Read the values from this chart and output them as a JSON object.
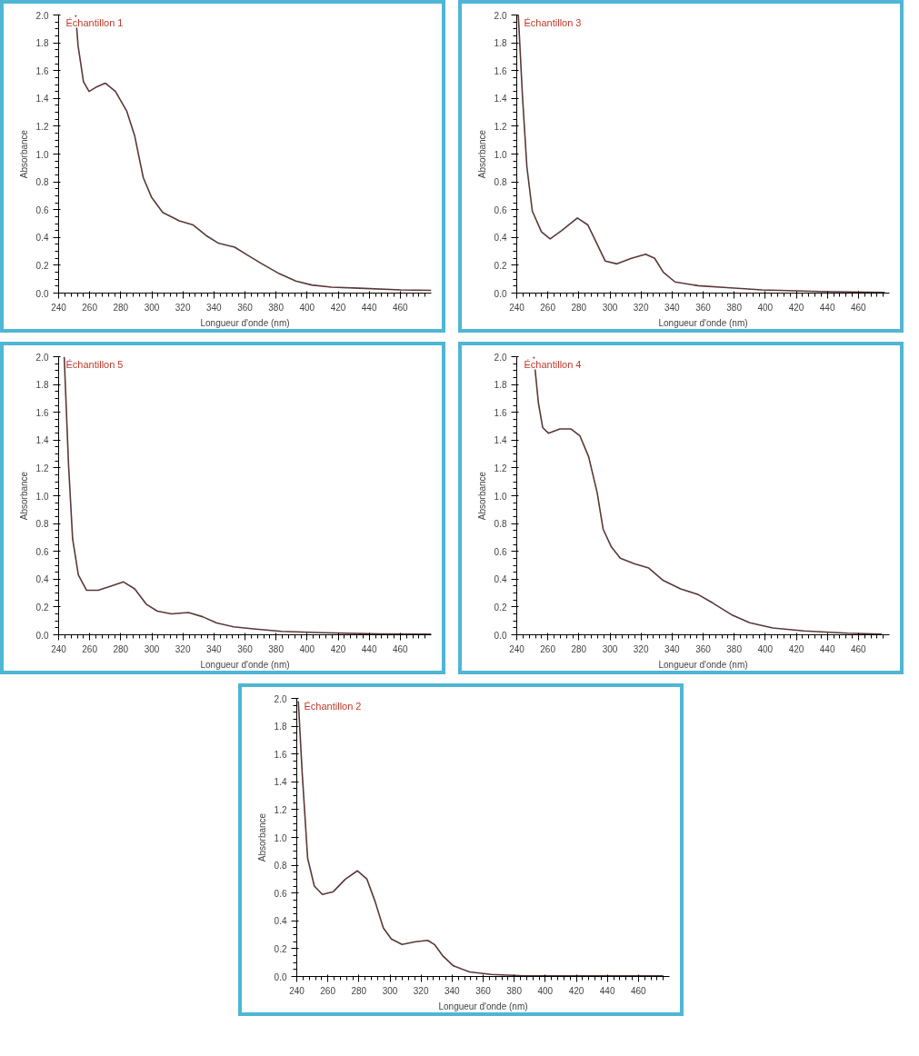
{
  "chart_data": [
    {
      "type": "line",
      "title": "Échantillon 1",
      "xlabel": "Longueur d'onde (nm)",
      "ylabel": "Absorbance",
      "xlim": [
        240,
        480
      ],
      "ylim": [
        0,
        2
      ],
      "xticks": [
        240,
        260,
        280,
        300,
        320,
        340,
        360,
        380,
        400,
        420,
        440,
        460
      ],
      "yticks": [
        {
          "value": 0,
          "label": "0.0"
        },
        0.2,
        0.4,
        0.6,
        0.8,
        {
          "value": 1,
          "label": "1.0"
        },
        1.2,
        1.4,
        1.6,
        1.8,
        {
          "value": 2,
          "label": "2.0"
        }
      ],
      "grid": false,
      "series": [
        {
          "color": "#5a3838",
          "x": [
            251,
            252.5,
            256,
            259.6,
            264,
            270,
            276.6,
            283.8,
            289,
            294.5,
            299.8,
            307,
            317.7,
            326.6,
            335.5,
            342.7,
            353.4,
            362,
            371,
            382,
            392.7,
            403,
            415.7,
            433.6,
            460.5,
            480
          ],
          "values": [
            2.0,
            1.78,
            1.52,
            1.45,
            1.48,
            1.51,
            1.45,
            1.31,
            1.13,
            0.83,
            0.69,
            0.58,
            0.52,
            0.49,
            0.41,
            0.36,
            0.33,
            0.27,
            0.21,
            0.14,
            0.086,
            0.058,
            0.042,
            0.035,
            0.023,
            0.02
          ]
        }
      ]
    },
    {
      "type": "line",
      "title": "Échantillon 3",
      "xlabel": "Longueur d'onde (nm)",
      "ylabel": "Absorbance",
      "xlim": [
        240,
        480
      ],
      "ylim": [
        0,
        2
      ],
      "xticks": [
        240,
        260,
        280,
        300,
        320,
        340,
        360,
        380,
        400,
        420,
        440,
        460
      ],
      "yticks": [
        {
          "value": 0,
          "label": "0.0"
        },
        0.2,
        0.4,
        0.6,
        0.8,
        {
          "value": 1,
          "label": "1.0"
        },
        1.2,
        1.4,
        1.6,
        1.8,
        {
          "value": 2,
          "label": "2.0"
        }
      ],
      "grid": false,
      "series": [
        {
          "color": "#5a3838",
          "x": [
            241,
            243.7,
            246.5,
            250,
            255.9,
            261.5,
            269,
            279,
            285.8,
            291.4,
            297,
            304.5,
            313.8,
            323,
            328.8,
            334.4,
            341.9,
            356.8,
            375.5,
            398,
            435,
            477
          ],
          "values": [
            2.0,
            1.41,
            0.91,
            0.59,
            0.44,
            0.39,
            0.45,
            0.54,
            0.49,
            0.36,
            0.23,
            0.21,
            0.25,
            0.28,
            0.25,
            0.15,
            0.08,
            0.053,
            0.039,
            0.023,
            0.011,
            0.005
          ]
        }
      ]
    },
    {
      "type": "line",
      "title": "Échantillon 5",
      "xlabel": "Longueur d'onde (nm)",
      "ylabel": "Absorbance",
      "xlim": [
        240,
        480
      ],
      "ylim": [
        0,
        2
      ],
      "xticks": [
        240,
        260,
        280,
        300,
        320,
        340,
        360,
        380,
        400,
        420,
        440,
        460
      ],
      "yticks": [
        {
          "value": 0,
          "label": "0.0"
        },
        0.2,
        0.4,
        0.6,
        0.8,
        {
          "value": 1,
          "label": "1.0"
        },
        1.2,
        1.4,
        1.6,
        1.8,
        {
          "value": 2,
          "label": "2.0"
        }
      ],
      "grid": false,
      "series": [
        {
          "color": "#5a3838",
          "x": [
            243.6,
            246.4,
            249,
            252.7,
            258,
            265.5,
            273.6,
            281.8,
            289,
            296.4,
            303.6,
            312.7,
            323.6,
            332.7,
            341.8,
            352.7,
            365.5,
            383.6,
            410.9,
            447,
            480
          ],
          "values": [
            2.0,
            1.22,
            0.69,
            0.43,
            0.32,
            0.32,
            0.35,
            0.38,
            0.33,
            0.22,
            0.17,
            0.15,
            0.16,
            0.13,
            0.085,
            0.057,
            0.042,
            0.025,
            0.015,
            0.006,
            0.005
          ]
        }
      ]
    },
    {
      "type": "line",
      "title": "Échantillon 4",
      "xlabel": "Longueur d'onde (nm)",
      "ylabel": "Absorbance",
      "xlim": [
        240,
        480
      ],
      "ylim": [
        0,
        2
      ],
      "xticks": [
        240,
        260,
        280,
        300,
        320,
        340,
        360,
        380,
        400,
        420,
        440,
        460
      ],
      "yticks": [
        {
          "value": 0,
          "label": "0.0"
        },
        0.2,
        0.4,
        0.6,
        0.8,
        {
          "value": 1,
          "label": "1.0"
        },
        1.2,
        1.4,
        1.6,
        1.8,
        {
          "value": 2,
          "label": "2.0"
        }
      ],
      "grid": false,
      "series": [
        {
          "color": "#5a3838",
          "x": [
            251,
            253.9,
            256.7,
            260.4,
            267.8,
            275,
            280.7,
            286.3,
            291.8,
            295.6,
            301,
            306.7,
            316,
            325,
            334.4,
            345.5,
            356.7,
            366,
            379,
            390,
            404.8,
            425,
            453,
            475
          ],
          "values": [
            2.0,
            1.67,
            1.49,
            1.45,
            1.48,
            1.48,
            1.43,
            1.28,
            1.02,
            0.76,
            0.63,
            0.55,
            0.51,
            0.48,
            0.39,
            0.33,
            0.29,
            0.23,
            0.14,
            0.086,
            0.049,
            0.028,
            0.011,
            0.005
          ]
        }
      ]
    },
    {
      "type": "line",
      "title": "Échantillon 2",
      "xlabel": "Longueur d'onde (nm)",
      "ylabel": "Absorbance",
      "xlim": [
        240,
        480
      ],
      "ylim": [
        0,
        2
      ],
      "xticks": [
        240,
        260,
        280,
        300,
        320,
        340,
        360,
        380,
        400,
        420,
        440,
        460
      ],
      "yticks": [
        {
          "value": 0,
          "label": "0.0"
        },
        0.2,
        0.4,
        0.6,
        0.8,
        {
          "value": 1,
          "label": "1.0"
        },
        1.2,
        1.4,
        1.6,
        1.8,
        {
          "value": 2,
          "label": "2.0"
        }
      ],
      "grid": false,
      "series": [
        {
          "color": "#5a3838",
          "x": [
            241,
            243.5,
            247,
            251.3,
            256.5,
            263.5,
            271.3,
            279,
            285.2,
            290.4,
            295.7,
            300.9,
            307.8,
            316.5,
            324.3,
            328.7,
            333.9,
            340.9,
            351.3,
            365.2,
            386,
            421,
            476
          ],
          "values": [
            1.98,
            1.46,
            0.85,
            0.65,
            0.59,
            0.61,
            0.7,
            0.76,
            0.7,
            0.54,
            0.35,
            0.27,
            0.23,
            0.25,
            0.26,
            0.23,
            0.15,
            0.076,
            0.033,
            0.015,
            0.005,
            0.005,
            0.005
          ]
        }
      ]
    }
  ]
}
